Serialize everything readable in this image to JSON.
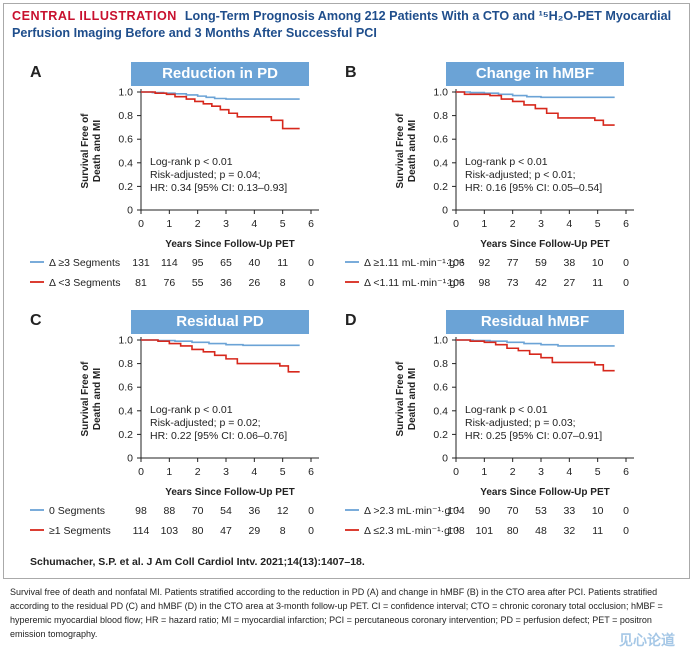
{
  "header": {
    "label": "CENTRAL ILLUSTRATION",
    "title": "Long-Term Prognosis Among 212 Patients With a CTO and ¹⁵H₂O-PET Myocardial Perfusion Imaging Before and 3 Months After Successful PCI"
  },
  "citation": "Schumacher, S.P. et al. J Am Coll Cardiol Intv. 2021;14(13):1407–18.",
  "caption": "Survival free of death and nonfatal MI. Patients stratified according to the reduction in PD (A) and change in hMBF (B) in the CTO area after PCI. Patients stratified according to the residual PD (C) and hMBF (D) in the CTO area at 3-month follow-up PET. CI = confidence interval; CTO = chronic coronary total occlusion; hMBF = hyperemic myocardial blood flow; HR = hazard ratio; MI = myocardial infarction; PCI = percutaneous coronary intervention; PD = perfusion defect; PET = positron emission tomography.",
  "watermark": "见心论道",
  "colors": {
    "blue": "#6ba3d6",
    "red": "#d7281c",
    "accent": "#c8102e",
    "title": "#1f4e8c"
  },
  "chart_data": [
    {
      "panel": "A",
      "type": "line",
      "title": "Reduction in PD",
      "xlabel": "Years Since Follow-Up PET",
      "ylabel": "Survival Free of Death and MI",
      "xlim": [
        0,
        6
      ],
      "ylim": [
        0,
        1.0
      ],
      "xticks": [
        0,
        1,
        2,
        3,
        4,
        5,
        6
      ],
      "yticks": [
        0,
        0.2,
        0.4,
        0.6,
        0.8,
        1.0
      ],
      "annotations": [
        "Log-rank p < 0.01",
        "Risk-adjusted; p = 0.04;",
        "HR: 0.34 [95% CI: 0.13–0.93]"
      ],
      "series": [
        {
          "name": "Δ ≥3 Segments",
          "color": "#6ba3d6",
          "x": [
            0,
            0.4,
            0.8,
            1.2,
            1.6,
            2.0,
            2.3,
            2.6,
            3.0,
            5.6
          ],
          "y": [
            1.0,
            0.995,
            0.99,
            0.985,
            0.975,
            0.965,
            0.955,
            0.945,
            0.94,
            0.94
          ],
          "at_risk": [
            131,
            114,
            95,
            65,
            40,
            11,
            0
          ]
        },
        {
          "name": "Δ <3 Segments",
          "color": "#d7281c",
          "x": [
            0,
            0.5,
            0.9,
            1.2,
            1.6,
            1.9,
            2.2,
            2.5,
            2.8,
            3.1,
            3.4,
            4.6,
            5.0,
            5.6
          ],
          "y": [
            1.0,
            0.99,
            0.98,
            0.96,
            0.94,
            0.92,
            0.9,
            0.88,
            0.85,
            0.82,
            0.79,
            0.76,
            0.69,
            0.69
          ],
          "at_risk": [
            81,
            76,
            55,
            36,
            26,
            8,
            0
          ]
        }
      ]
    },
    {
      "panel": "B",
      "type": "line",
      "title": "Change in hMBF",
      "xlabel": "Years Since Follow-Up PET",
      "ylabel": "Survival Free of Death and MI",
      "xlim": [
        0,
        6
      ],
      "ylim": [
        0,
        1.0
      ],
      "xticks": [
        0,
        1,
        2,
        3,
        4,
        5,
        6
      ],
      "yticks": [
        0,
        0.2,
        0.4,
        0.6,
        0.8,
        1.0
      ],
      "annotations": [
        "Log-rank p < 0.01",
        "Risk-adjusted; p < 0.01;",
        "HR: 0.16 [95% CI: 0.05–0.54]"
      ],
      "series": [
        {
          "name": "Δ ≥1.11 mL·min⁻¹·g⁻¹",
          "color": "#6ba3d6",
          "x": [
            0,
            0.5,
            1.0,
            1.5,
            2.0,
            2.5,
            3.0,
            5.6
          ],
          "y": [
            1.0,
            0.995,
            0.99,
            0.98,
            0.97,
            0.96,
            0.955,
            0.955
          ],
          "at_risk": [
            106,
            92,
            77,
            59,
            38,
            10,
            0
          ]
        },
        {
          "name": "Δ <1.11 mL·min⁻¹·g⁻¹",
          "color": "#d7281c",
          "x": [
            0,
            0.3,
            1.2,
            1.6,
            2.0,
            2.4,
            2.8,
            3.2,
            3.6,
            4.9,
            5.2,
            5.6
          ],
          "y": [
            1.0,
            0.98,
            0.97,
            0.94,
            0.92,
            0.89,
            0.86,
            0.82,
            0.78,
            0.76,
            0.72,
            0.72
          ],
          "at_risk": [
            106,
            98,
            73,
            42,
            27,
            11,
            0
          ]
        }
      ]
    },
    {
      "panel": "C",
      "type": "line",
      "title": "Residual PD",
      "xlabel": "Years Since Follow-Up PET",
      "ylabel": "Survival Free of Death and MI",
      "xlim": [
        0,
        6
      ],
      "ylim": [
        0,
        1.0
      ],
      "xticks": [
        0,
        1,
        2,
        3,
        4,
        5,
        6
      ],
      "yticks": [
        0,
        0.2,
        0.4,
        0.6,
        0.8,
        1.0
      ],
      "annotations": [
        "Log-rank p < 0.01",
        "Risk-adjusted; p = 0.02;",
        "HR: 0.22 [95% CI: 0.06–0.76]"
      ],
      "series": [
        {
          "name": "0 Segments",
          "color": "#6ba3d6",
          "x": [
            0,
            0.6,
            1.2,
            1.8,
            2.4,
            3.0,
            3.6,
            5.6
          ],
          "y": [
            1.0,
            0.995,
            0.99,
            0.98,
            0.97,
            0.96,
            0.955,
            0.955
          ],
          "at_risk": [
            98,
            88,
            70,
            54,
            36,
            12,
            0
          ]
        },
        {
          "name": "≥1 Segments",
          "color": "#d7281c",
          "x": [
            0,
            0.6,
            1.0,
            1.4,
            1.8,
            2.2,
            2.6,
            3.0,
            3.4,
            4.9,
            5.2,
            5.6
          ],
          "y": [
            1.0,
            0.99,
            0.97,
            0.95,
            0.92,
            0.9,
            0.87,
            0.84,
            0.8,
            0.78,
            0.73,
            0.73
          ],
          "at_risk": [
            114,
            103,
            80,
            47,
            29,
            8,
            0
          ]
        }
      ]
    },
    {
      "panel": "D",
      "type": "line",
      "title": "Residual hMBF",
      "xlabel": "Years Since Follow-Up PET",
      "ylabel": "Survival Free of Death and MI",
      "xlim": [
        0,
        6
      ],
      "ylim": [
        0,
        1.0
      ],
      "xticks": [
        0,
        1,
        2,
        3,
        4,
        5,
        6
      ],
      "yticks": [
        0,
        0.2,
        0.4,
        0.6,
        0.8,
        1.0
      ],
      "annotations": [
        "Log-rank p < 0.01",
        "Risk-adjusted; p = 0.03;",
        "HR: 0.25 [95% CI: 0.07–0.91]"
      ],
      "series": [
        {
          "name": "Δ >2.3 mL·min⁻¹·g⁻¹",
          "color": "#6ba3d6",
          "x": [
            0,
            0.6,
            1.2,
            1.8,
            2.4,
            3.0,
            3.6,
            5.6
          ],
          "y": [
            1.0,
            0.995,
            0.99,
            0.98,
            0.97,
            0.96,
            0.95,
            0.95
          ],
          "at_risk": [
            104,
            90,
            70,
            53,
            33,
            10,
            0
          ]
        },
        {
          "name": "Δ ≤2.3 mL·min⁻¹·g⁻¹",
          "color": "#d7281c",
          "x": [
            0,
            0.5,
            1.0,
            1.4,
            1.8,
            2.2,
            2.6,
            3.0,
            3.4,
            4.9,
            5.2,
            5.6
          ],
          "y": [
            1.0,
            0.99,
            0.98,
            0.96,
            0.93,
            0.91,
            0.88,
            0.85,
            0.81,
            0.79,
            0.74,
            0.74
          ],
          "at_risk": [
            108,
            101,
            80,
            48,
            32,
            11,
            0
          ]
        }
      ]
    }
  ]
}
